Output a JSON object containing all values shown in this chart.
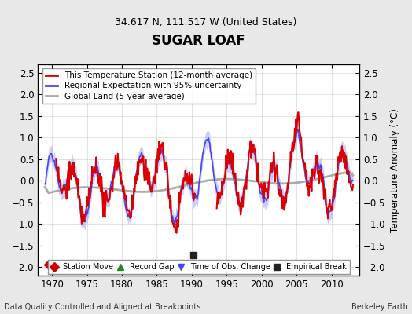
{
  "title": "SUGAR LOAF",
  "subtitle": "34.617 N, 111.517 W (United States)",
  "ylabel": "Temperature Anomaly (°C)",
  "footer_left": "Data Quality Controlled and Aligned at Breakpoints",
  "footer_right": "Berkeley Earth",
  "xlim": [
    1968,
    2014
  ],
  "ylim": [
    -2.2,
    2.7
  ],
  "yticks": [
    -2,
    -1.5,
    -1,
    -0.5,
    0,
    0.5,
    1,
    1.5,
    2,
    2.5
  ],
  "xticks": [
    1970,
    1975,
    1980,
    1985,
    1990,
    1995,
    2000,
    2005,
    2010
  ],
  "regional_color": "#4444ff",
  "regional_fill_color": "#aaaaff",
  "station_color": "#dd0000",
  "global_color": "#aaaaaa",
  "background_color": "#e8e8e8",
  "plot_bg_color": "#ffffff",
  "marker_station_move": {
    "x": 1969.5,
    "color": "#cc0000",
    "marker": "D"
  },
  "marker_empirical_break": {
    "x": 1990.2,
    "color": "#222222",
    "marker": "s"
  },
  "legend_items": [
    {
      "label": "This Temperature Station (12-month average)",
      "color": "#dd0000",
      "lw": 2
    },
    {
      "label": "Regional Expectation with 95% uncertainty",
      "color": "#4444ff",
      "lw": 2
    },
    {
      "label": "Global Land (5-year average)",
      "color": "#aaaaaa",
      "lw": 2
    }
  ]
}
